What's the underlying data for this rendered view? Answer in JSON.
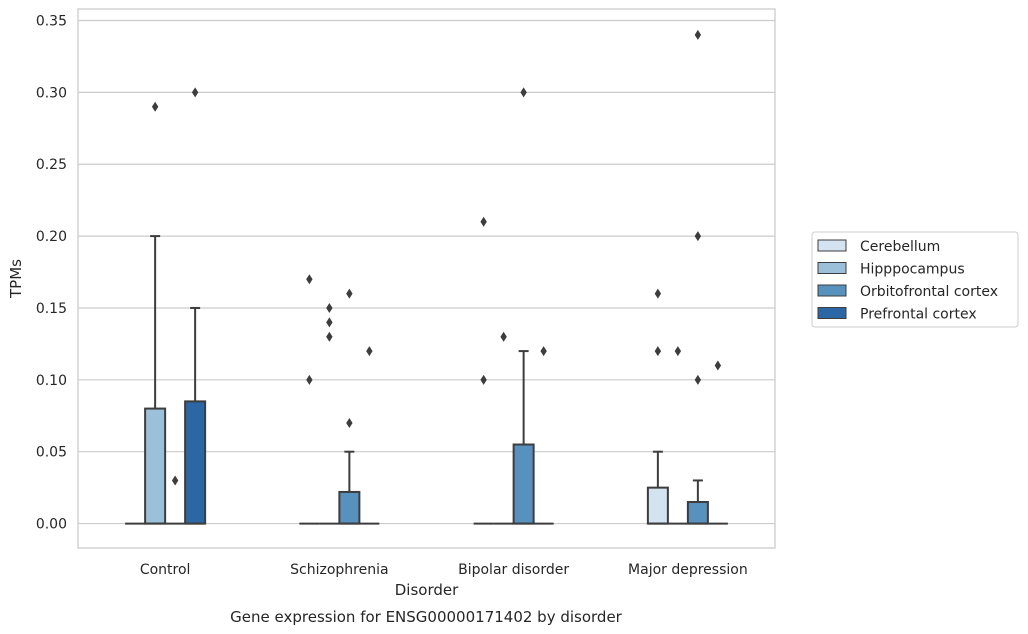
{
  "chart_data": {
    "type": "box",
    "xlabel": "Disorder",
    "ylabel": "TPMs",
    "caption": "Gene expression for ENSG00000171402 by disorder",
    "ylim": [
      -0.017,
      0.358
    ],
    "yticks": [
      "0.00",
      "0.05",
      "0.10",
      "0.15",
      "0.20",
      "0.25",
      "0.30",
      "0.35"
    ],
    "grid": "horizontal",
    "legend_position": "right",
    "categories": [
      "Control",
      "Schizophrenia",
      "Bipolar disorder",
      "Major depression"
    ],
    "series": [
      {
        "name": "Cerebellum",
        "color": "#d3e3f0"
      },
      {
        "name": "Hipppocampus",
        "color": "#9bc1da"
      },
      {
        "name": "Orbitofrontal cortex",
        "color": "#5792be"
      },
      {
        "name": "Prefrontal cortex",
        "color": "#2c67a5"
      }
    ],
    "boxes": [
      {
        "category": 0,
        "series": 0,
        "whislo": 0,
        "q1": 0,
        "med": 0,
        "q3": 0,
        "whishi": 0,
        "fliers": []
      },
      {
        "category": 0,
        "series": 1,
        "whislo": 0,
        "q1": 0,
        "med": 0,
        "q3": 0.08,
        "whishi": 0.2,
        "fliers": [
          0.29
        ]
      },
      {
        "category": 0,
        "series": 2,
        "whislo": 0,
        "q1": 0,
        "med": 0,
        "q3": 0,
        "whishi": 0,
        "fliers": [
          0.03
        ]
      },
      {
        "category": 0,
        "series": 3,
        "whislo": 0,
        "q1": 0,
        "med": 0,
        "q3": 0.085,
        "whishi": 0.15,
        "fliers": [
          0.3
        ]
      },
      {
        "category": 1,
        "series": 0,
        "whislo": 0,
        "q1": 0,
        "med": 0,
        "q3": 0,
        "whishi": 0,
        "fliers": [
          0.1,
          0.17
        ]
      },
      {
        "category": 1,
        "series": 1,
        "whislo": 0,
        "q1": 0,
        "med": 0,
        "q3": 0,
        "whishi": 0,
        "fliers": [
          0.13,
          0.14,
          0.15
        ]
      },
      {
        "category": 1,
        "series": 2,
        "whislo": 0,
        "q1": 0,
        "med": 0,
        "q3": 0.022,
        "whishi": 0.05,
        "fliers": [
          0.07,
          0.16
        ]
      },
      {
        "category": 1,
        "series": 3,
        "whislo": 0,
        "q1": 0,
        "med": 0,
        "q3": 0,
        "whishi": 0,
        "fliers": [
          0.12
        ]
      },
      {
        "category": 2,
        "series": 0,
        "whislo": 0,
        "q1": 0,
        "med": 0,
        "q3": 0,
        "whishi": 0,
        "fliers": [
          0.1,
          0.21
        ]
      },
      {
        "category": 2,
        "series": 1,
        "whislo": 0,
        "q1": 0,
        "med": 0,
        "q3": 0,
        "whishi": 0,
        "fliers": [
          0.13
        ]
      },
      {
        "category": 2,
        "series": 2,
        "whislo": 0,
        "q1": 0,
        "med": 0,
        "q3": 0.055,
        "whishi": 0.12,
        "fliers": [
          0.3
        ]
      },
      {
        "category": 2,
        "series": 3,
        "whislo": 0,
        "q1": 0,
        "med": 0,
        "q3": 0,
        "whishi": 0,
        "fliers": [
          0.12
        ]
      },
      {
        "category": 3,
        "series": 0,
        "whislo": 0,
        "q1": 0,
        "med": 0,
        "q3": 0.025,
        "whishi": 0.05,
        "fliers": [
          0.12,
          0.16
        ]
      },
      {
        "category": 3,
        "series": 1,
        "whislo": 0,
        "q1": 0,
        "med": 0,
        "q3": 0,
        "whishi": 0,
        "fliers": [
          0.12
        ]
      },
      {
        "category": 3,
        "series": 2,
        "whislo": 0,
        "q1": 0,
        "med": 0,
        "q3": 0.015,
        "whishi": 0.03,
        "fliers": [
          0.1,
          0.2,
          0.34
        ]
      },
      {
        "category": 3,
        "series": 3,
        "whislo": 0,
        "q1": 0,
        "med": 0,
        "q3": 0,
        "whishi": 0,
        "fliers": [
          0.11
        ]
      }
    ]
  }
}
